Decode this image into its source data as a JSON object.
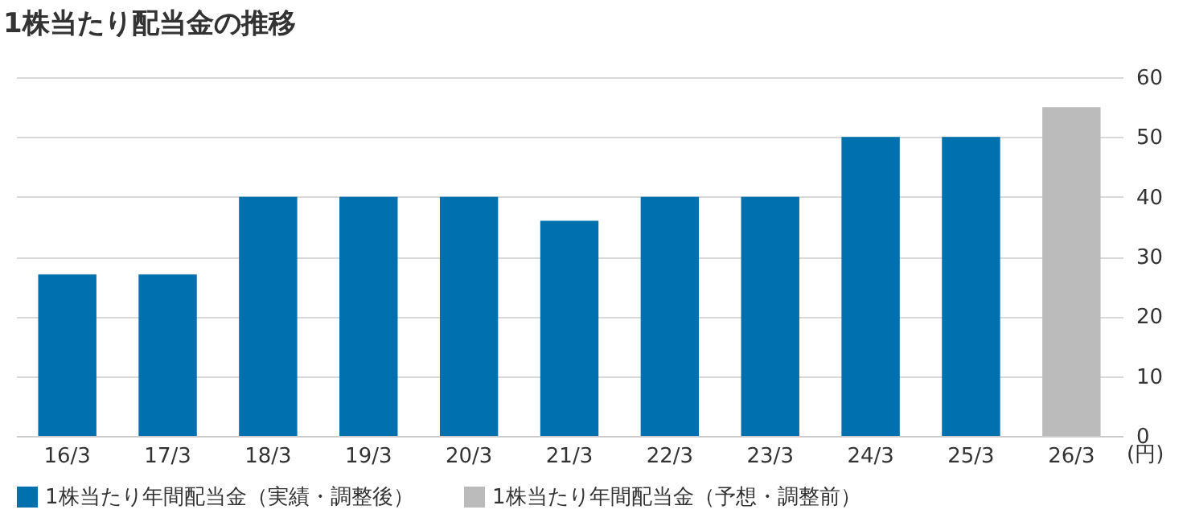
{
  "chart_data": {
    "type": "bar",
    "title": "1株当たり配当金の推移",
    "ylabel": "(円)",
    "categories": [
      "16/3",
      "17/3",
      "18/3",
      "19/3",
      "20/3",
      "21/3",
      "22/3",
      "23/3",
      "24/3",
      "25/3",
      "26/3"
    ],
    "series": [
      {
        "name": "1株当たり年間配当金（実績・調整後）",
        "color": "#0070ae",
        "values": [
          27,
          27,
          40,
          40,
          40,
          36,
          40,
          40,
          50,
          50,
          null
        ]
      },
      {
        "name": "1株当たり年間配当金（予想・調整前）",
        "color": "#bbbbbb",
        "values": [
          null,
          null,
          null,
          null,
          null,
          null,
          null,
          null,
          null,
          null,
          55
        ]
      }
    ],
    "ylim": [
      0,
      60
    ],
    "yticks": [
      0,
      10,
      20,
      30,
      40,
      50,
      60
    ],
    "grid": "y",
    "legend": "bottom"
  }
}
